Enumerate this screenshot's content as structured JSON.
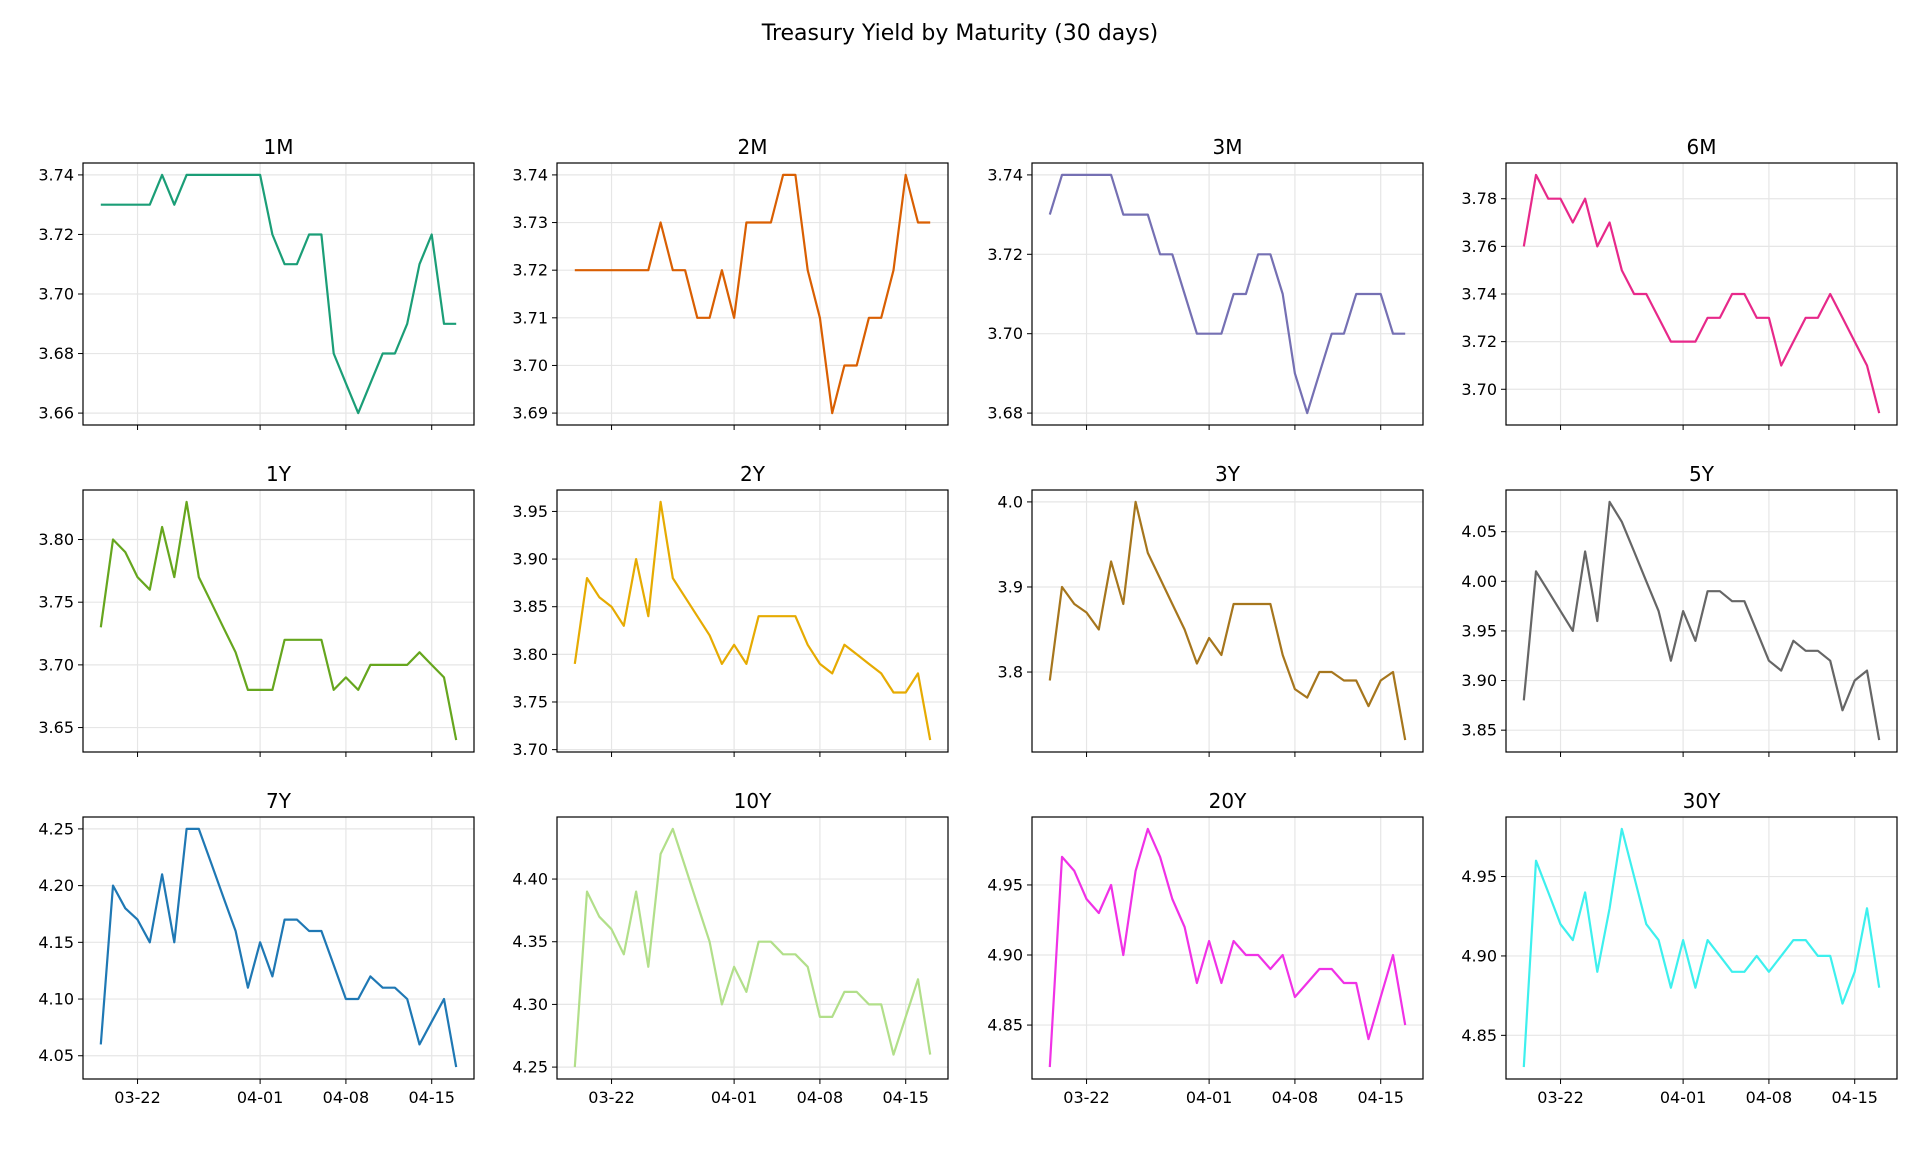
{
  "chart_data": {
    "title": "Treasury Yield by Maturity (30 days)",
    "type": "line",
    "grid": true,
    "layout": "4x3 small multiples, shared x-axis",
    "x": [
      "03-19",
      "03-20",
      "03-21",
      "03-22",
      "03-23",
      "03-24",
      "03-25",
      "03-26",
      "03-27",
      "03-28",
      "03-29",
      "03-30",
      "03-31",
      "04-01",
      "04-02",
      "04-03",
      "04-04",
      "04-05",
      "04-06",
      "04-07",
      "04-08",
      "04-09",
      "04-10",
      "04-11",
      "04-12",
      "04-13",
      "04-14",
      "04-15",
      "04-16",
      "04-17"
    ],
    "xticks": [
      "03-22",
      "04-01",
      "04-08",
      "04-15"
    ],
    "panels": [
      {
        "title": "1M",
        "color": "#1b9e77",
        "yticks": [
          "3.66",
          "3.68",
          "3.70",
          "3.72",
          "3.74"
        ],
        "values": [
          3.73,
          3.73,
          3.73,
          3.73,
          3.73,
          3.74,
          3.73,
          3.74,
          3.74,
          3.74,
          3.74,
          3.74,
          3.74,
          3.74,
          3.72,
          3.71,
          3.71,
          3.72,
          3.72,
          3.68,
          3.67,
          3.66,
          3.67,
          3.68,
          3.68,
          3.69,
          3.71,
          3.72,
          3.69,
          3.69
        ]
      },
      {
        "title": "2M",
        "color": "#d95f02",
        "yticks": [
          "3.69",
          "3.70",
          "3.71",
          "3.72",
          "3.73",
          "3.74"
        ],
        "values": [
          3.72,
          3.72,
          3.72,
          3.72,
          3.72,
          3.72,
          3.72,
          3.73,
          3.72,
          3.72,
          3.71,
          3.71,
          3.72,
          3.71,
          3.73,
          3.73,
          3.73,
          3.74,
          3.74,
          3.72,
          3.71,
          3.69,
          3.7,
          3.7,
          3.71,
          3.71,
          3.72,
          3.74,
          3.73,
          3.73
        ]
      },
      {
        "title": "3M",
        "color": "#7570b3",
        "yticks": [
          "3.68",
          "3.70",
          "3.72",
          "3.74"
        ],
        "values": [
          3.73,
          3.74,
          3.74,
          3.74,
          3.74,
          3.74,
          3.73,
          3.73,
          3.73,
          3.72,
          3.72,
          3.71,
          3.7,
          3.7,
          3.7,
          3.71,
          3.71,
          3.72,
          3.72,
          3.71,
          3.69,
          3.68,
          3.69,
          3.7,
          3.7,
          3.71,
          3.71,
          3.71,
          3.7,
          3.7
        ]
      },
      {
        "title": "6M",
        "color": "#e7298a",
        "yticks": [
          "3.70",
          "3.72",
          "3.74",
          "3.76",
          "3.78"
        ],
        "values": [
          3.76,
          3.79,
          3.78,
          3.78,
          3.77,
          3.78,
          3.76,
          3.77,
          3.75,
          3.74,
          3.74,
          3.73,
          3.72,
          3.72,
          3.72,
          3.73,
          3.73,
          3.74,
          3.74,
          3.73,
          3.73,
          3.71,
          3.72,
          3.73,
          3.73,
          3.74,
          3.73,
          3.72,
          3.71,
          3.69
        ]
      },
      {
        "title": "1Y",
        "color": "#66a61e",
        "yticks": [
          "3.65",
          "3.70",
          "3.75",
          "3.80"
        ],
        "values": [
          3.73,
          3.8,
          3.79,
          3.77,
          3.76,
          3.81,
          3.77,
          3.83,
          3.77,
          3.75,
          3.73,
          3.71,
          3.68,
          3.68,
          3.68,
          3.72,
          3.72,
          3.72,
          3.72,
          3.68,
          3.69,
          3.68,
          3.7,
          3.7,
          3.7,
          3.7,
          3.71,
          3.7,
          3.69,
          3.64
        ]
      },
      {
        "title": "2Y",
        "color": "#e6ab02",
        "yticks": [
          "3.70",
          "3.75",
          "3.80",
          "3.85",
          "3.90",
          "3.95"
        ],
        "values": [
          3.79,
          3.88,
          3.86,
          3.85,
          3.83,
          3.9,
          3.84,
          3.96,
          3.88,
          3.86,
          3.84,
          3.82,
          3.79,
          3.81,
          3.79,
          3.84,
          3.84,
          3.84,
          3.84,
          3.81,
          3.79,
          3.78,
          3.81,
          3.8,
          3.79,
          3.78,
          3.76,
          3.76,
          3.78,
          3.71
        ]
      },
      {
        "title": "3Y",
        "color": "#a6761d",
        "yticks": [
          "3.8",
          "3.9",
          "4.0"
        ],
        "values": [
          3.79,
          3.9,
          3.88,
          3.87,
          3.85,
          3.93,
          3.88,
          4.0,
          3.94,
          3.91,
          3.88,
          3.85,
          3.81,
          3.84,
          3.82,
          3.88,
          3.88,
          3.88,
          3.88,
          3.82,
          3.78,
          3.77,
          3.8,
          3.8,
          3.79,
          3.79,
          3.76,
          3.79,
          3.8,
          3.72
        ]
      },
      {
        "title": "5Y",
        "color": "#666666",
        "yticks": [
          "3.85",
          "3.90",
          "3.95",
          "4.00",
          "4.05"
        ],
        "values": [
          3.88,
          4.01,
          3.99,
          3.97,
          3.95,
          4.03,
          3.96,
          4.08,
          4.06,
          4.03,
          4.0,
          3.97,
          3.92,
          3.97,
          3.94,
          3.99,
          3.99,
          3.98,
          3.98,
          3.95,
          3.92,
          3.91,
          3.94,
          3.93,
          3.93,
          3.92,
          3.87,
          3.9,
          3.91,
          3.84
        ]
      },
      {
        "title": "7Y",
        "color": "#1f78b4",
        "yticks": [
          "4.05",
          "4.10",
          "4.15",
          "4.20",
          "4.25"
        ],
        "values": [
          4.06,
          4.2,
          4.18,
          4.17,
          4.15,
          4.21,
          4.15,
          4.25,
          4.25,
          4.22,
          4.19,
          4.16,
          4.11,
          4.15,
          4.12,
          4.17,
          4.17,
          4.16,
          4.16,
          4.13,
          4.1,
          4.1,
          4.12,
          4.11,
          4.11,
          4.1,
          4.06,
          4.08,
          4.1,
          4.04
        ]
      },
      {
        "title": "10Y",
        "color": "#b2df8a",
        "yticks": [
          "4.25",
          "4.30",
          "4.35",
          "4.40"
        ],
        "values": [
          4.25,
          4.39,
          4.37,
          4.36,
          4.34,
          4.39,
          4.33,
          4.42,
          4.44,
          4.41,
          4.38,
          4.35,
          4.3,
          4.33,
          4.31,
          4.35,
          4.35,
          4.34,
          4.34,
          4.33,
          4.29,
          4.29,
          4.31,
          4.31,
          4.3,
          4.3,
          4.26,
          4.29,
          4.32,
          4.26
        ]
      },
      {
        "title": "20Y",
        "color": "#f032e6",
        "yticks": [
          "4.85",
          "4.90",
          "4.95"
        ],
        "values": [
          4.82,
          4.97,
          4.96,
          4.94,
          4.93,
          4.95,
          4.9,
          4.96,
          4.99,
          4.97,
          4.94,
          4.92,
          4.88,
          4.91,
          4.88,
          4.91,
          4.9,
          4.9,
          4.89,
          4.9,
          4.87,
          4.88,
          4.89,
          4.89,
          4.88,
          4.88,
          4.84,
          4.87,
          4.9,
          4.85
        ]
      },
      {
        "title": "30Y",
        "color": "#3ef0ee",
        "yticks": [
          "4.85",
          "4.90",
          "4.95"
        ],
        "values": [
          4.83,
          4.96,
          4.94,
          4.92,
          4.91,
          4.94,
          4.89,
          4.93,
          4.98,
          4.95,
          4.92,
          4.91,
          4.88,
          4.91,
          4.88,
          4.91,
          4.9,
          4.89,
          4.89,
          4.9,
          4.89,
          4.9,
          4.91,
          4.91,
          4.9,
          4.9,
          4.87,
          4.89,
          4.93,
          4.88
        ]
      }
    ]
  }
}
